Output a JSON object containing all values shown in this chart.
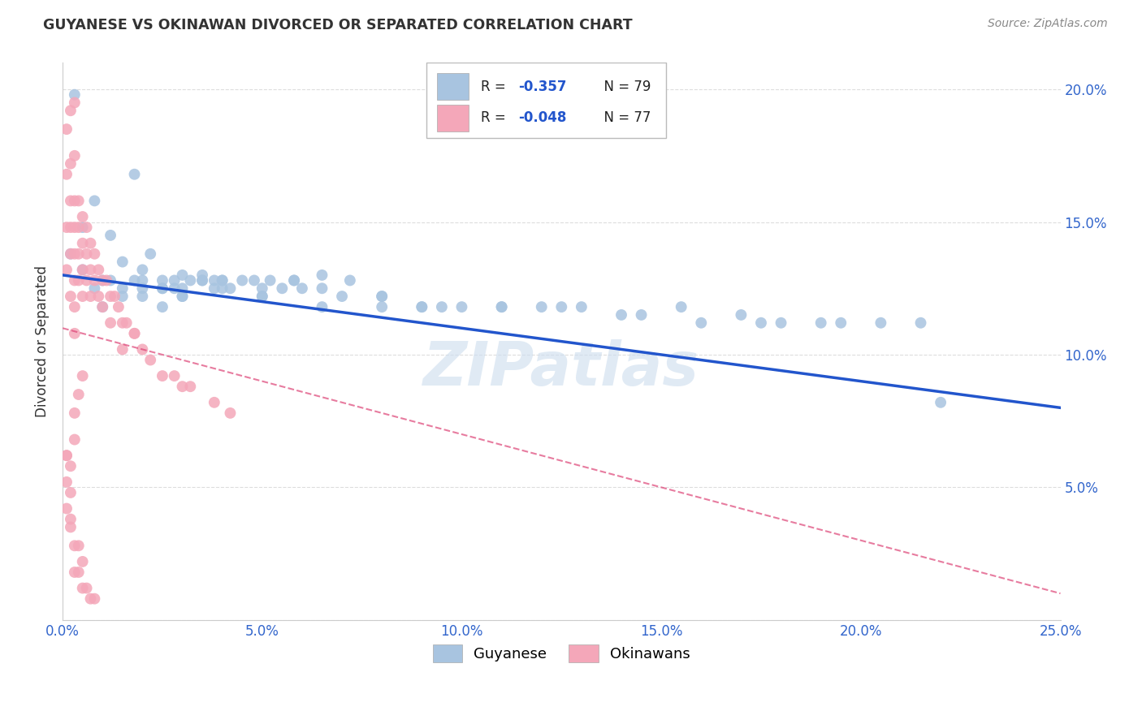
{
  "title": "GUYANESE VS OKINAWAN DIVORCED OR SEPARATED CORRELATION CHART",
  "source": "Source: ZipAtlas.com",
  "ylabel": "Divorced or Separated",
  "xlim": [
    0.0,
    0.25
  ],
  "ylim": [
    0.0,
    0.21
  ],
  "blue_color": "#a8c4e0",
  "pink_color": "#f4a7b9",
  "blue_line_color": "#2255cc",
  "pink_line_color": "#dd4477",
  "watermark": "ZIPatlas",
  "legend_r_blue": "-0.357",
  "legend_n_blue": "79",
  "legend_r_pink": "-0.048",
  "legend_n_pink": "77",
  "blue_points_x": [
    0.003,
    0.018,
    0.008,
    0.005,
    0.012,
    0.002,
    0.005,
    0.01,
    0.015,
    0.02,
    0.025,
    0.03,
    0.035,
    0.04,
    0.008,
    0.012,
    0.018,
    0.022,
    0.025,
    0.028,
    0.032,
    0.038,
    0.015,
    0.02,
    0.025,
    0.03,
    0.035,
    0.04,
    0.048,
    0.055,
    0.01,
    0.015,
    0.02,
    0.025,
    0.03,
    0.038,
    0.045,
    0.052,
    0.058,
    0.065,
    0.02,
    0.028,
    0.035,
    0.042,
    0.05,
    0.058,
    0.065,
    0.072,
    0.08,
    0.09,
    0.03,
    0.04,
    0.05,
    0.06,
    0.07,
    0.08,
    0.09,
    0.1,
    0.11,
    0.12,
    0.05,
    0.065,
    0.08,
    0.095,
    0.11,
    0.125,
    0.13,
    0.14,
    0.155,
    0.17,
    0.18,
    0.195,
    0.205,
    0.215,
    0.145,
    0.16,
    0.175,
    0.19,
    0.22
  ],
  "blue_points_y": [
    0.198,
    0.168,
    0.158,
    0.148,
    0.145,
    0.138,
    0.132,
    0.128,
    0.135,
    0.128,
    0.128,
    0.13,
    0.13,
    0.128,
    0.125,
    0.128,
    0.128,
    0.138,
    0.125,
    0.128,
    0.128,
    0.128,
    0.125,
    0.132,
    0.125,
    0.125,
    0.128,
    0.128,
    0.128,
    0.125,
    0.118,
    0.122,
    0.125,
    0.118,
    0.122,
    0.125,
    0.128,
    0.128,
    0.128,
    0.125,
    0.122,
    0.125,
    0.128,
    0.125,
    0.125,
    0.128,
    0.13,
    0.128,
    0.122,
    0.118,
    0.122,
    0.125,
    0.122,
    0.125,
    0.122,
    0.118,
    0.118,
    0.118,
    0.118,
    0.118,
    0.122,
    0.118,
    0.122,
    0.118,
    0.118,
    0.118,
    0.118,
    0.115,
    0.118,
    0.115,
    0.112,
    0.112,
    0.112,
    0.112,
    0.115,
    0.112,
    0.112,
    0.112,
    0.082
  ],
  "pink_points_x": [
    0.001,
    0.001,
    0.001,
    0.001,
    0.001,
    0.002,
    0.002,
    0.002,
    0.002,
    0.002,
    0.002,
    0.003,
    0.003,
    0.003,
    0.003,
    0.003,
    0.003,
    0.003,
    0.003,
    0.004,
    0.004,
    0.004,
    0.004,
    0.005,
    0.005,
    0.005,
    0.005,
    0.006,
    0.006,
    0.006,
    0.007,
    0.007,
    0.007,
    0.008,
    0.008,
    0.009,
    0.009,
    0.01,
    0.01,
    0.011,
    0.012,
    0.012,
    0.013,
    0.014,
    0.015,
    0.015,
    0.016,
    0.018,
    0.02,
    0.022,
    0.025,
    0.028,
    0.03,
    0.032,
    0.038,
    0.042,
    0.001,
    0.001,
    0.002,
    0.002,
    0.002,
    0.003,
    0.003,
    0.004,
    0.004,
    0.005,
    0.005,
    0.006,
    0.007,
    0.008,
    0.001,
    0.002,
    0.003,
    0.003,
    0.004,
    0.005,
    0.018
  ],
  "pink_points_y": [
    0.185,
    0.168,
    0.148,
    0.132,
    0.062,
    0.192,
    0.172,
    0.158,
    0.148,
    0.138,
    0.122,
    0.195,
    0.175,
    0.158,
    0.148,
    0.138,
    0.128,
    0.118,
    0.108,
    0.158,
    0.148,
    0.138,
    0.128,
    0.152,
    0.142,
    0.132,
    0.122,
    0.148,
    0.138,
    0.128,
    0.142,
    0.132,
    0.122,
    0.138,
    0.128,
    0.132,
    0.122,
    0.128,
    0.118,
    0.128,
    0.122,
    0.112,
    0.122,
    0.118,
    0.112,
    0.102,
    0.112,
    0.108,
    0.102,
    0.098,
    0.092,
    0.092,
    0.088,
    0.088,
    0.082,
    0.078,
    0.062,
    0.052,
    0.058,
    0.048,
    0.038,
    0.028,
    0.018,
    0.028,
    0.018,
    0.022,
    0.012,
    0.012,
    0.008,
    0.008,
    0.042,
    0.035,
    0.068,
    0.078,
    0.085,
    0.092,
    0.108
  ]
}
